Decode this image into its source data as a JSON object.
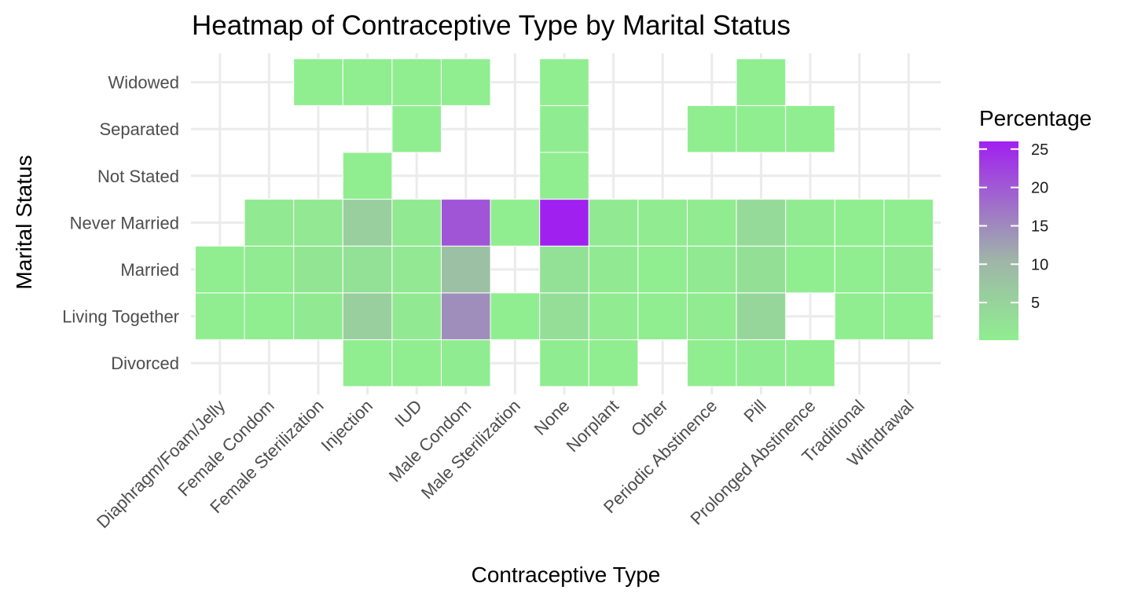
{
  "chart_data": {
    "type": "heatmap",
    "title": "Heatmap of Contraceptive Type by Marital Status",
    "xlabel": "Contraceptive Type",
    "ylabel": "Marital Status",
    "x_categories": [
      "Diaphragm/Foam/Jelly",
      "Female Condom",
      "Female Sterilization",
      "Injection",
      "IUD",
      "Male Condom",
      "Male Sterilization",
      "None",
      "Norplant",
      "Other",
      "Periodic Abstinence",
      "Pill",
      "Prolonged Abstinence",
      "Traditional",
      "Withdrawal"
    ],
    "y_categories": [
      "Divorced",
      "Living Together",
      "Married",
      "Never Married",
      "Not Stated",
      "Separated",
      "Widowed"
    ],
    "cells": [
      {
        "x": "Injection",
        "y": "Divorced",
        "value": 0.3
      },
      {
        "x": "IUD",
        "y": "Divorced",
        "value": 0.2
      },
      {
        "x": "Male Condom",
        "y": "Divorced",
        "value": 0.4
      },
      {
        "x": "None",
        "y": "Divorced",
        "value": 0.4
      },
      {
        "x": "Norplant",
        "y": "Divorced",
        "value": 0.1
      },
      {
        "x": "Periodic Abstinence",
        "y": "Divorced",
        "value": 0.1
      },
      {
        "x": "Pill",
        "y": "Divorced",
        "value": 0.4
      },
      {
        "x": "Prolonged Abstinence",
        "y": "Divorced",
        "value": 0.1
      },
      {
        "x": "Diaphragm/Foam/Jelly",
        "y": "Living Together",
        "value": 0.1
      },
      {
        "x": "Female Condom",
        "y": "Living Together",
        "value": 0.3
      },
      {
        "x": "Female Sterilization",
        "y": "Living Together",
        "value": 0.8
      },
      {
        "x": "Injection",
        "y": "Living Together",
        "value": 6.0
      },
      {
        "x": "IUD",
        "y": "Living Together",
        "value": 0.8
      },
      {
        "x": "Male Condom",
        "y": "Living Together",
        "value": 14.5
      },
      {
        "x": "Male Sterilization",
        "y": "Living Together",
        "value": 0.1
      },
      {
        "x": "None",
        "y": "Living Together",
        "value": 3.0
      },
      {
        "x": "Norplant",
        "y": "Living Together",
        "value": 0.6
      },
      {
        "x": "Other",
        "y": "Living Together",
        "value": 0.3
      },
      {
        "x": "Periodic Abstinence",
        "y": "Living Together",
        "value": 0.6
      },
      {
        "x": "Pill",
        "y": "Living Together",
        "value": 4.5
      },
      {
        "x": "Traditional",
        "y": "Living Together",
        "value": 0.1
      },
      {
        "x": "Withdrawal",
        "y": "Living Together",
        "value": 0.3
      },
      {
        "x": "Diaphragm/Foam/Jelly",
        "y": "Married",
        "value": 0.1
      },
      {
        "x": "Female Condom",
        "y": "Married",
        "value": 0.6
      },
      {
        "x": "Female Sterilization",
        "y": "Married",
        "value": 1.5
      },
      {
        "x": "Injection",
        "y": "Married",
        "value": 2.5
      },
      {
        "x": "IUD",
        "y": "Married",
        "value": 1.2
      },
      {
        "x": "Male Condom",
        "y": "Married",
        "value": 8.5
      },
      {
        "x": "None",
        "y": "Married",
        "value": 2.5
      },
      {
        "x": "Norplant",
        "y": "Married",
        "value": 0.8
      },
      {
        "x": "Other",
        "y": "Married",
        "value": 0.3
      },
      {
        "x": "Periodic Abstinence",
        "y": "Married",
        "value": 0.8
      },
      {
        "x": "Pill",
        "y": "Married",
        "value": 2.8
      },
      {
        "x": "Prolonged Abstinence",
        "y": "Married",
        "value": 0.1
      },
      {
        "x": "Traditional",
        "y": "Married",
        "value": 0.1
      },
      {
        "x": "Withdrawal",
        "y": "Married",
        "value": 0.6
      },
      {
        "x": "Female Condom",
        "y": "Never Married",
        "value": 1.0
      },
      {
        "x": "Female Sterilization",
        "y": "Never Married",
        "value": 1.2
      },
      {
        "x": "Injection",
        "y": "Never Married",
        "value": 6.0
      },
      {
        "x": "IUD",
        "y": "Never Married",
        "value": 1.0
      },
      {
        "x": "Male Condom",
        "y": "Never Married",
        "value": 20.5
      },
      {
        "x": "Male Sterilization",
        "y": "Never Married",
        "value": 0.1
      },
      {
        "x": "None",
        "y": "Never Married",
        "value": 26.0
      },
      {
        "x": "Norplant",
        "y": "Never Married",
        "value": 0.8
      },
      {
        "x": "Other",
        "y": "Never Married",
        "value": 0.6
      },
      {
        "x": "Periodic Abstinence",
        "y": "Never Married",
        "value": 0.6
      },
      {
        "x": "Pill",
        "y": "Never Married",
        "value": 3.8
      },
      {
        "x": "Prolonged Abstinence",
        "y": "Never Married",
        "value": 0.6
      },
      {
        "x": "Traditional",
        "y": "Never Married",
        "value": 0.1
      },
      {
        "x": "Withdrawal",
        "y": "Never Married",
        "value": 0.1
      },
      {
        "x": "Injection",
        "y": "Not Stated",
        "value": 0.1
      },
      {
        "x": "None",
        "y": "Not Stated",
        "value": 0.3
      },
      {
        "x": "IUD",
        "y": "Separated",
        "value": 0.1
      },
      {
        "x": "None",
        "y": "Separated",
        "value": 0.4
      },
      {
        "x": "Periodic Abstinence",
        "y": "Separated",
        "value": 0.1
      },
      {
        "x": "Pill",
        "y": "Separated",
        "value": 0.1
      },
      {
        "x": "Prolonged Abstinence",
        "y": "Separated",
        "value": 0.1
      },
      {
        "x": "Female Sterilization",
        "y": "Widowed",
        "value": 0.1
      },
      {
        "x": "Injection",
        "y": "Widowed",
        "value": 0.1
      },
      {
        "x": "IUD",
        "y": "Widowed",
        "value": 0.1
      },
      {
        "x": "Male Condom",
        "y": "Widowed",
        "value": 0.3
      },
      {
        "x": "None",
        "y": "Widowed",
        "value": 0.3
      },
      {
        "x": "Pill",
        "y": "Widowed",
        "value": 0.1
      }
    ],
    "legend": {
      "title": "Percentage",
      "position": "right",
      "ticks": [
        5,
        10,
        15,
        20,
        25
      ],
      "range": [
        0.1,
        26
      ],
      "low_color": "#90ee90",
      "high_color": "#a020f0"
    },
    "grid": true
  }
}
